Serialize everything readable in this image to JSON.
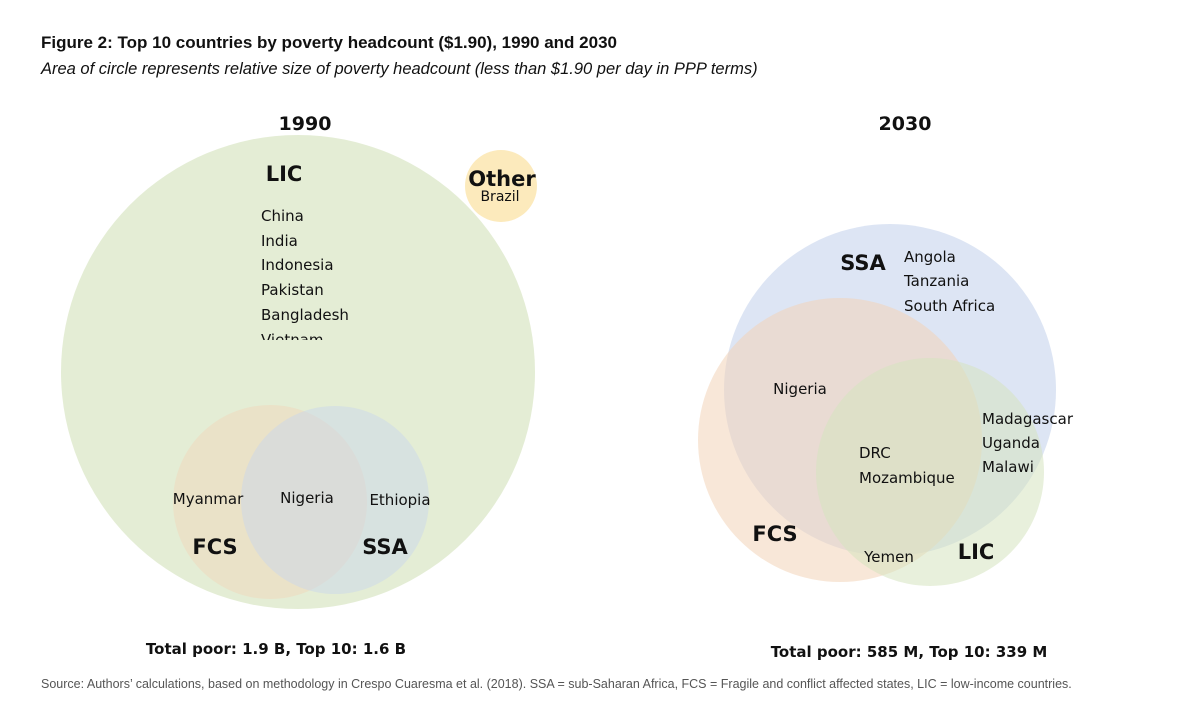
{
  "figure": {
    "title": "Figure 2: Top 10 countries by poverty headcount ($1.90), 1990 and 2030",
    "subtitle": "Area of circle represents relative size of poverty headcount (less than $1.90 per day in PPP terms)",
    "source": "Source: Authors’ calculations, based on methodology in Crespo Cuaresma et al. (2018). SSA = sub-Saharan Africa, FCS = Fragile and conflict affected states, LIC = low-income countries."
  },
  "colors": {
    "lic": "#d6e4bf",
    "ssa": "#c7d4ed",
    "fcs": "#f2d4b8",
    "other": "#fbe3a6"
  },
  "diagrams": {
    "y1990": {
      "year": "1990",
      "total": "Total poor: 1.9 B, Top 10: 1.6 B",
      "lic_label": "LIC",
      "lic_countries": [
        "China",
        "India",
        "Indonesia",
        "Pakistan",
        "Bangladesh",
        "Vietnam"
      ],
      "other_label": "Other",
      "other_country": "Brazil",
      "fcs_label": "FCS",
      "ssa_label": "SSA",
      "fcs_only_country": "Myanmar",
      "fcs_ssa_country": "Nigeria",
      "ssa_only_country": "Ethiopia"
    },
    "y2030": {
      "year": "2030",
      "total": "Total poor: 585 M, Top 10: 339 M",
      "ssa_label": "SSA",
      "ssa_countries": [
        "Angola",
        "Tanzania",
        "South Africa"
      ],
      "fcs_ssa_country": "Nigeria",
      "all_three_countries": [
        "DRC",
        "Mozambique"
      ],
      "ssa_lic_countries": [
        "Madagascar",
        "Uganda",
        "Malawi"
      ],
      "fcs_lic_country": "Yemen",
      "fcs_label": "FCS",
      "lic_label": "LIC"
    }
  }
}
